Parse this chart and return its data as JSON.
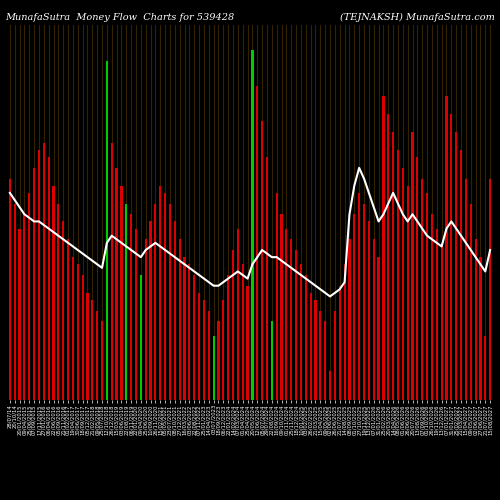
{
  "title_left": "MunafaSutra  Money Flow  Charts for 539428",
  "title_right": "(TEJNAKSH) MunafaSutra.com",
  "background_color": "#000000",
  "grid_color": "#3a2800",
  "bar_colors_pattern": [
    "red",
    "red",
    "red",
    "red",
    "red",
    "red",
    "red",
    "red",
    "red",
    "red",
    "red",
    "red",
    "red",
    "red",
    "red",
    "red",
    "red",
    "red",
    "red",
    "red",
    "green",
    "red",
    "red",
    "red",
    "green",
    "red",
    "red",
    "green",
    "red",
    "red",
    "red",
    "red",
    "red",
    "red",
    "red",
    "red",
    "red",
    "red",
    "red",
    "red",
    "red",
    "red",
    "green",
    "red",
    "red",
    "red",
    "red",
    "red",
    "red",
    "red",
    "green",
    "red",
    "red",
    "red",
    "green",
    "red",
    "red",
    "red",
    "red",
    "red",
    "red",
    "red",
    "red",
    "red",
    "red",
    "red",
    "red",
    "red",
    "red",
    "red",
    "red",
    "red",
    "red",
    "red",
    "red",
    "red",
    "red",
    "red",
    "red",
    "red",
    "red",
    "red",
    "red",
    "red",
    "red",
    "red",
    "red",
    "red",
    "red",
    "red",
    "red",
    "red",
    "red",
    "red",
    "red",
    "red",
    "red",
    "red",
    "red",
    "red"
  ],
  "bar_heights": [
    0.62,
    0.55,
    0.48,
    0.52,
    0.58,
    0.65,
    0.7,
    0.72,
    0.68,
    0.6,
    0.55,
    0.5,
    0.45,
    0.4,
    0.38,
    0.35,
    0.3,
    0.28,
    0.25,
    0.22,
    0.95,
    0.72,
    0.65,
    0.6,
    0.55,
    0.52,
    0.48,
    0.35,
    0.45,
    0.5,
    0.55,
    0.6,
    0.58,
    0.55,
    0.5,
    0.45,
    0.4,
    0.38,
    0.35,
    0.3,
    0.28,
    0.25,
    0.18,
    0.22,
    0.28,
    0.35,
    0.42,
    0.48,
    0.38,
    0.32,
    0.98,
    0.88,
    0.78,
    0.68,
    0.22,
    0.58,
    0.52,
    0.48,
    0.45,
    0.42,
    0.38,
    0.35,
    0.3,
    0.28,
    0.25,
    0.22,
    0.08,
    0.25,
    0.32,
    0.38,
    0.45,
    0.52,
    0.58,
    0.55,
    0.5,
    0.45,
    0.4,
    0.85,
    0.8,
    0.75,
    0.7,
    0.65,
    0.6,
    0.75,
    0.68,
    0.62,
    0.58,
    0.52,
    0.48,
    0.44,
    0.85,
    0.8,
    0.75,
    0.7,
    0.62,
    0.55,
    0.45,
    0.4,
    0.18,
    0.62
  ],
  "line_color": "#ffffff",
  "line_values": [
    0.58,
    0.56,
    0.54,
    0.52,
    0.51,
    0.5,
    0.5,
    0.49,
    0.48,
    0.47,
    0.46,
    0.45,
    0.44,
    0.43,
    0.42,
    0.41,
    0.4,
    0.39,
    0.38,
    0.37,
    0.44,
    0.46,
    0.45,
    0.44,
    0.43,
    0.42,
    0.41,
    0.4,
    0.42,
    0.43,
    0.44,
    0.43,
    0.42,
    0.41,
    0.4,
    0.39,
    0.38,
    0.37,
    0.36,
    0.35,
    0.34,
    0.33,
    0.32,
    0.32,
    0.33,
    0.34,
    0.35,
    0.36,
    0.35,
    0.34,
    0.38,
    0.4,
    0.42,
    0.41,
    0.4,
    0.4,
    0.39,
    0.38,
    0.37,
    0.36,
    0.35,
    0.34,
    0.33,
    0.32,
    0.31,
    0.3,
    0.29,
    0.3,
    0.31,
    0.33,
    0.52,
    0.6,
    0.65,
    0.62,
    0.58,
    0.54,
    0.5,
    0.52,
    0.55,
    0.58,
    0.55,
    0.52,
    0.5,
    0.52,
    0.5,
    0.48,
    0.46,
    0.45,
    0.44,
    0.43,
    0.48,
    0.5,
    0.48,
    0.46,
    0.44,
    0.42,
    0.4,
    0.38,
    0.36,
    0.42
  ],
  "n_bars": 100,
  "ylim": [
    0,
    1.05
  ],
  "xlabel_fontsize": 3.8,
  "title_fontsize": 7.0,
  "figsize": [
    5.0,
    5.0
  ],
  "dpi": 100,
  "bar_width": 0.45,
  "dates": [
    "28/07/14",
    "20/10/14",
    "20/01/2015",
    "09/04/2015",
    "25/06/2015",
    "07/09/2015",
    "17/11/2015",
    "27/01/2016",
    "06/04/2016",
    "22/06/2016",
    "05/09/2016",
    "21/11/2016",
    "01/02/2017",
    "19/04/2017",
    "30/06/2017",
    "18/09/2017",
    "05/12/2017",
    "21/02/2018",
    "09/05/2018",
    "25/07/2018",
    "12/10/2018",
    "26/12/2018",
    "15/03/2019",
    "03/06/2019",
    "22/08/2019",
    "06/11/2019",
    "22/01/2020",
    "09/04/2020",
    "25/06/2020",
    "10/09/2020",
    "26/11/2020",
    "15/02/2021",
    "05/05/2021",
    "23/07/2021",
    "08/10/2021",
    "27/12/2021",
    "16/03/2022",
    "03/06/2022",
    "22/08/2022",
    "07/11/2022",
    "25/01/2023",
    "14/04/2023",
    "03/07/2023",
    "18/09/2023",
    "06/12/2023",
    "22/01/2024",
    "14/02/2024",
    "07/03/2024",
    "01/04/2024",
    "25/04/2024",
    "20/05/2024",
    "12/06/2024",
    "05/07/2024",
    "29/07/2024",
    "22/08/2024",
    "16/09/2024",
    "09/10/2024",
    "01/11/2024",
    "25/11/2024",
    "18/12/2024",
    "10/01/2025",
    "03/02/2025",
    "26/02/2025",
    "21/03/2025",
    "15/04/2025",
    "09/05/2025",
    "02/06/2025",
    "26/06/2025",
    "21/07/2025",
    "14/08/2025",
    "08/09/2025",
    "01/10/2025",
    "27/10/2025",
    "19/11/2025",
    "13/12/2025",
    "07/01/2026",
    "31/01/2026",
    "25/02/2026",
    "20/03/2026",
    "14/04/2026",
    "08/05/2026",
    "01/06/2026",
    "26/06/2026",
    "20/07/2026",
    "13/08/2026",
    "07/09/2026",
    "01/10/2026",
    "26/10/2026",
    "19/11/2026",
    "13/12/2026",
    "07/01/2027",
    "31/01/2027",
    "25/02/2027",
    "21/03/2027",
    "15/04/2027",
    "09/05/2027",
    "02/06/2027",
    "27/06/2027",
    "21/07/2027",
    "15/08/2027"
  ]
}
